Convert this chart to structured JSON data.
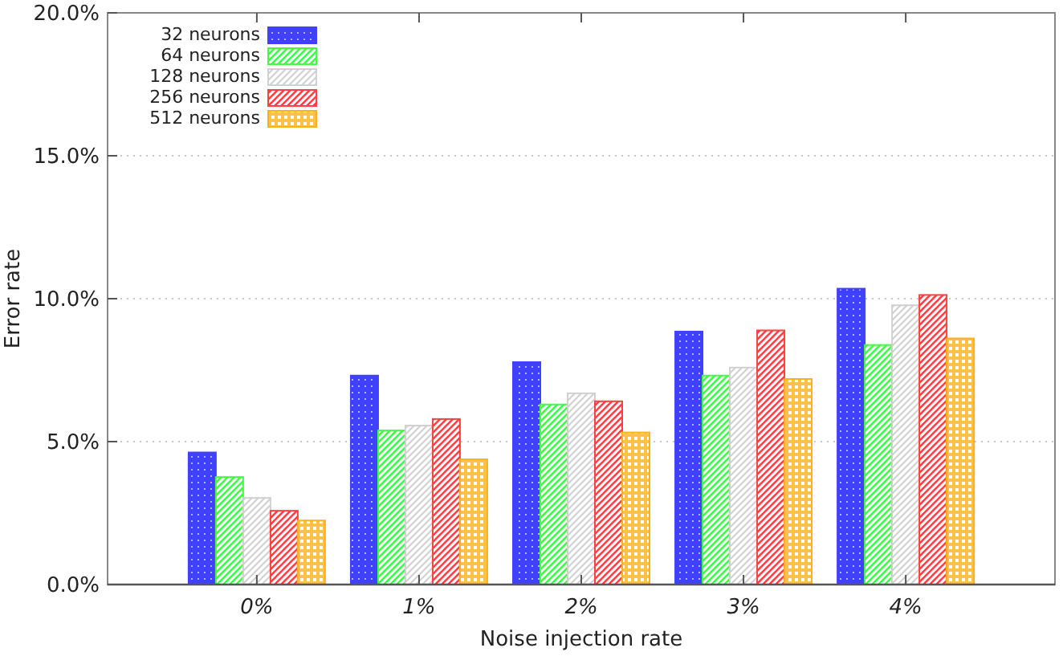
{
  "chart_data": {
    "type": "bar",
    "xlabel": "Noise injection rate",
    "ylabel": "Error rate",
    "categories": [
      "0%",
      "1%",
      "2%",
      "3%",
      "4%"
    ],
    "series": [
      {
        "name": "32 neurons",
        "color": "#4040ff",
        "values": [
          4.62,
          7.31,
          7.78,
          8.85,
          10.35
        ]
      },
      {
        "name": "64 neurons",
        "color": "#40ff40",
        "values": [
          3.76,
          5.39,
          6.3,
          7.31,
          8.38
        ]
      },
      {
        "name": "128 neurons",
        "color": "#d0d0d0",
        "values": [
          3.03,
          5.56,
          6.69,
          7.59,
          9.77
        ]
      },
      {
        "name": "256 neurons",
        "color": "#ff4040",
        "values": [
          2.58,
          5.79,
          6.41,
          8.89,
          10.13
        ]
      },
      {
        "name": "512 neurons",
        "color": "#ffb020",
        "values": [
          2.24,
          4.38,
          5.32,
          7.19,
          8.61
        ]
      }
    ],
    "ylim": [
      0,
      20
    ],
    "yticks": [
      {
        "value": 0,
        "label": "0.0%"
      },
      {
        "value": 5,
        "label": "5.0%"
      },
      {
        "value": 10,
        "label": "10.0%"
      },
      {
        "value": 15,
        "label": "15.0%"
      },
      {
        "value": 20,
        "label": "20.0%"
      }
    ],
    "grid": "y",
    "legend": "top left"
  }
}
